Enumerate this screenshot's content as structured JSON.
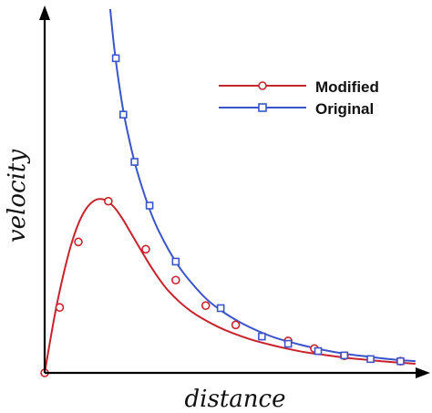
{
  "chart_data": {
    "type": "line",
    "title": "",
    "xlabel": "distance",
    "ylabel": "velocity",
    "xlim": [
      0,
      10
    ],
    "ylim": [
      0,
      10
    ],
    "grid": false,
    "axis_ticks": "none",
    "legend": {
      "position": "top-right"
    },
    "series": [
      {
        "name": "Modified",
        "color": "#c8232c",
        "marker": "circle",
        "curve_x": [
          0.0,
          0.15,
          0.3,
          0.5,
          0.7,
          0.9,
          1.1,
          1.3,
          1.5,
          1.7,
          1.9,
          2.1,
          2.3,
          2.5,
          2.7,
          2.9,
          3.1,
          3.3,
          3.6,
          3.9,
          4.2,
          4.6,
          5.0,
          5.5,
          6.0,
          6.5,
          7.0,
          7.5,
          8.0,
          8.5,
          9.0,
          9.5,
          9.9
        ],
        "curve_y": [
          0.0,
          0.9,
          1.75,
          2.7,
          3.5,
          4.1,
          4.5,
          4.72,
          4.78,
          4.7,
          4.5,
          4.2,
          3.85,
          3.5,
          3.15,
          2.82,
          2.52,
          2.26,
          1.95,
          1.7,
          1.5,
          1.28,
          1.1,
          0.92,
          0.78,
          0.66,
          0.56,
          0.49,
          0.42,
          0.37,
          0.32,
          0.28,
          0.25
        ],
        "markers_x": [
          0.0,
          0.4,
          0.9,
          1.7,
          2.7,
          3.5,
          4.3,
          5.1,
          6.5,
          7.2,
          8.0,
          9.5
        ],
        "markers_y": [
          0.0,
          1.8,
          3.6,
          4.72,
          3.4,
          2.55,
          1.85,
          1.32,
          0.88,
          0.67,
          0.47,
          0.32
        ]
      },
      {
        "name": "Original",
        "color": "#3b55c9",
        "marker": "square",
        "curve_x": [
          1.75,
          1.85,
          1.95,
          2.1,
          2.25,
          2.4,
          2.6,
          2.8,
          3.0,
          3.3,
          3.6,
          3.9,
          4.3,
          4.7,
          5.2,
          5.7,
          6.2,
          6.8,
          7.4,
          8.0,
          8.6,
          9.2,
          9.9
        ],
        "curve_y": [
          10.0,
          9.0,
          8.2,
          7.2,
          6.45,
          5.8,
          5.1,
          4.5,
          4.0,
          3.4,
          2.9,
          2.5,
          2.05,
          1.72,
          1.4,
          1.15,
          0.95,
          0.78,
          0.64,
          0.53,
          0.45,
          0.38,
          0.32
        ],
        "markers_x": [
          1.9,
          2.1,
          2.4,
          2.8,
          3.5,
          4.7,
          5.8,
          6.5,
          7.3,
          8.0,
          8.7,
          9.5
        ],
        "markers_y": [
          8.65,
          7.1,
          5.8,
          4.6,
          3.06,
          1.78,
          1.0,
          0.8,
          0.6,
          0.48,
          0.38,
          0.32
        ]
      }
    ]
  }
}
